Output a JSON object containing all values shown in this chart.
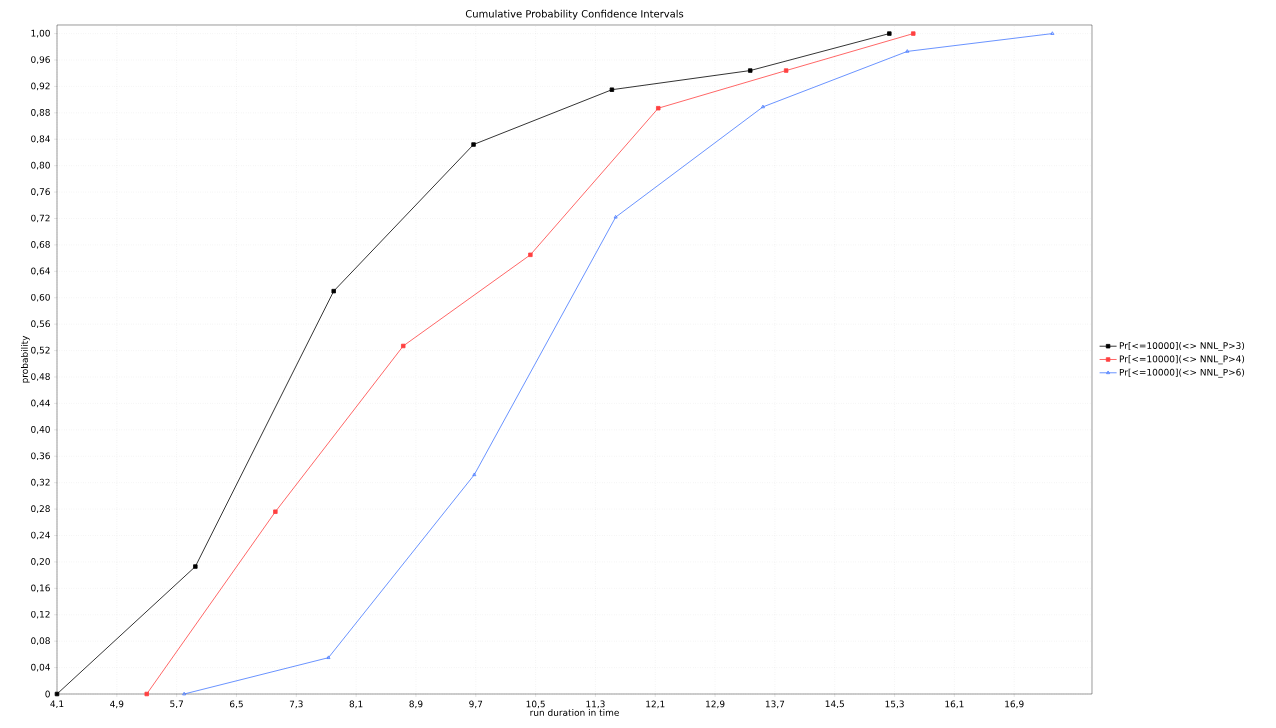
{
  "chart_data": {
    "type": "line",
    "title": "Cumulative Probability Confidence Intervals",
    "xlabel": "run duration in time",
    "ylabel": "probability",
    "series": [
      {
        "name": "Pr[<=10000](<> NNL_P>3)",
        "color": "#000000",
        "marker": "square",
        "x": [
          4.1,
          5.95,
          7.8,
          9.67,
          11.52,
          13.37,
          15.23
        ],
        "values": [
          0,
          0.193,
          0.61,
          0.832,
          0.915,
          0.944,
          1.0
        ]
      },
      {
        "name": "Pr[<=10000](<> NNL_P>4)",
        "color": "#ff4040",
        "marker": "square",
        "x": [
          5.3,
          7.02,
          8.73,
          10.43,
          12.14,
          13.85,
          15.55
        ],
        "values": [
          0,
          0.276,
          0.527,
          0.665,
          0.887,
          0.944,
          1.0
        ]
      },
      {
        "name": "Pr[<=10000](<> NNL_P>6)",
        "color": "#4477ff",
        "marker": "triangle",
        "x": [
          5.8,
          7.73,
          9.68,
          11.57,
          13.54,
          15.47,
          17.41
        ],
        "values": [
          0,
          0.055,
          0.332,
          0.722,
          0.889,
          0.973,
          1.0
        ]
      }
    ],
    "xlim": [
      4.1,
      17.94
    ],
    "ylim": [
      0,
      1.013
    ],
    "xticks": [
      {
        "value": 4.1,
        "label": "4,1"
      },
      {
        "value": 4.9,
        "label": "4,9"
      },
      {
        "value": 5.7,
        "label": "5,7"
      },
      {
        "value": 6.5,
        "label": "6,5"
      },
      {
        "value": 7.3,
        "label": "7,3"
      },
      {
        "value": 8.1,
        "label": "8,1"
      },
      {
        "value": 8.9,
        "label": "8,9"
      },
      {
        "value": 9.7,
        "label": "9,7"
      },
      {
        "value": 10.5,
        "label": "10,5"
      },
      {
        "value": 11.3,
        "label": "11,3"
      },
      {
        "value": 12.1,
        "label": "12,1"
      },
      {
        "value": 12.9,
        "label": "12,9"
      },
      {
        "value": 13.7,
        "label": "13,7"
      },
      {
        "value": 14.5,
        "label": "14,5"
      },
      {
        "value": 15.3,
        "label": "15,3"
      },
      {
        "value": 16.1,
        "label": "16,1"
      },
      {
        "value": 16.9,
        "label": "16,9"
      }
    ],
    "yticks": [
      0,
      {
        "value": 0.04,
        "label": "0,04"
      },
      {
        "value": 0.08,
        "label": "0,08"
      },
      {
        "value": 0.12,
        "label": "0,12"
      },
      {
        "value": 0.16,
        "label": "0,16"
      },
      {
        "value": 0.2,
        "label": "0,20"
      },
      {
        "value": 0.24,
        "label": "0,24"
      },
      {
        "value": 0.28,
        "label": "0,28"
      },
      {
        "value": 0.32,
        "label": "0,32"
      },
      {
        "value": 0.36,
        "label": "0,36"
      },
      {
        "value": 0.4,
        "label": "0,40"
      },
      {
        "value": 0.44,
        "label": "0,44"
      },
      {
        "value": 0.48,
        "label": "0,48"
      },
      {
        "value": 0.52,
        "label": "0,52"
      },
      {
        "value": 0.56,
        "label": "0,56"
      },
      {
        "value": 0.6,
        "label": "0,60"
      },
      {
        "value": 0.64,
        "label": "0,64"
      },
      {
        "value": 0.68,
        "label": "0,68"
      },
      {
        "value": 0.72,
        "label": "0,72"
      },
      {
        "value": 0.76,
        "label": "0,76"
      },
      {
        "value": 0.8,
        "label": "0,80"
      },
      {
        "value": 0.84,
        "label": "0,84"
      },
      {
        "value": 0.88,
        "label": "0,88"
      },
      {
        "value": 0.92,
        "label": "0,92"
      },
      {
        "value": 0.96,
        "label": "0,96"
      },
      {
        "value": 1.0,
        "label": "1,00"
      }
    ],
    "grid": true,
    "legend": "right",
    "line_style": "solid"
  }
}
